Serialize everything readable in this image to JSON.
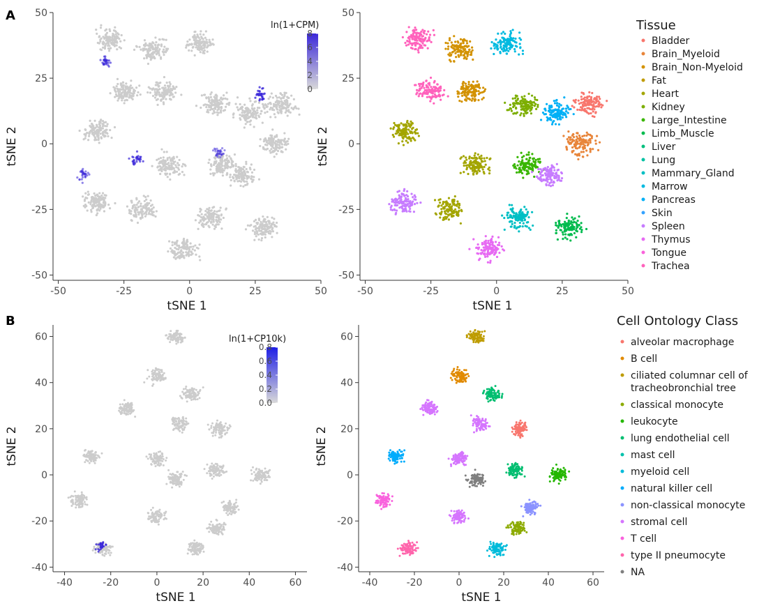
{
  "panels": {
    "A": "A",
    "B": "B"
  },
  "colors": {
    "grey": "#cccccc",
    "high": "#3b28d9"
  },
  "chart_data": [
    {
      "type": "scatter",
      "id": "A_left",
      "xlabel": "tSNE 1",
      "ylabel": "tSNE 2",
      "xlim": [
        -52,
        50
      ],
      "ylim": [
        -52,
        50
      ],
      "xticks": [
        -50,
        -25,
        0,
        25,
        50
      ],
      "yticks": [
        -50,
        -25,
        0,
        25,
        50
      ],
      "colorbar": {
        "title": "ln(1+CPM)",
        "min": 0,
        "max": 8,
        "ticks": [
          0,
          2,
          4,
          6,
          8
        ]
      },
      "expression_regions": [
        {
          "x": 27,
          "y": 19,
          "value": 6
        },
        {
          "x": -32,
          "y": 31,
          "value": 4
        },
        {
          "x": -20,
          "y": -6,
          "value": 5
        },
        {
          "x": -40,
          "y": -12,
          "value": 3
        },
        {
          "x": 11,
          "y": -3,
          "value": 2
        }
      ],
      "grid": false
    },
    {
      "type": "scatter",
      "id": "A_right",
      "xlabel": "tSNE 1",
      "ylabel": "tSNE 2",
      "xlim": [
        -52,
        50
      ],
      "ylim": [
        -52,
        50
      ],
      "xticks": [
        -50,
        -25,
        0,
        25,
        50
      ],
      "yticks": [
        -50,
        -25,
        0,
        25,
        50
      ],
      "legend": {
        "title": "Tissue",
        "position": "right",
        "items": [
          {
            "name": "Bladder",
            "color": "#f8766d"
          },
          {
            "name": "Brain_Myeloid",
            "color": "#e8853a"
          },
          {
            "name": "Brain_Non-Myeloid",
            "color": "#d39200"
          },
          {
            "name": "Fat",
            "color": "#c09b00"
          },
          {
            "name": "Heart",
            "color": "#a3a500"
          },
          {
            "name": "Kidney",
            "color": "#7cae00"
          },
          {
            "name": "Large_Intestine",
            "color": "#39b600"
          },
          {
            "name": "Limb_Muscle",
            "color": "#00bb4e"
          },
          {
            "name": "Liver",
            "color": "#00bf7d"
          },
          {
            "name": "Lung",
            "color": "#00c1a3"
          },
          {
            "name": "Mammary_Gland",
            "color": "#00bfc4"
          },
          {
            "name": "Marrow",
            "color": "#00bae0"
          },
          {
            "name": "Pancreas",
            "color": "#00b0f6"
          },
          {
            "name": "Skin",
            "color": "#35a2ff"
          },
          {
            "name": "Spleen",
            "color": "#c77cff"
          },
          {
            "name": "Thymus",
            "color": "#e76bf3"
          },
          {
            "name": "Tongue",
            "color": "#fa62db"
          },
          {
            "name": "Trachea",
            "color": "#ff62bc"
          }
        ]
      },
      "clusters": [
        {
          "x": 32,
          "y": 0,
          "color": "#e8853a"
        },
        {
          "x": 35,
          "y": 15,
          "color": "#f8766d"
        },
        {
          "x": 23,
          "y": 12,
          "color": "#00b0f6"
        },
        {
          "x": 10,
          "y": 15,
          "color": "#7cae00"
        },
        {
          "x": -10,
          "y": 20,
          "color": "#d39200"
        },
        {
          "x": -25,
          "y": 20,
          "color": "#ff62bc"
        },
        {
          "x": -35,
          "y": 5,
          "color": "#a3a500"
        },
        {
          "x": -8,
          "y": -8,
          "color": "#a3a500"
        },
        {
          "x": 12,
          "y": -8,
          "color": "#39b600"
        },
        {
          "x": -18,
          "y": -25,
          "color": "#a3a500"
        },
        {
          "x": 8,
          "y": -28,
          "color": "#00bfc4"
        },
        {
          "x": -35,
          "y": -22,
          "color": "#c77cff"
        },
        {
          "x": 20,
          "y": -12,
          "color": "#c77cff"
        },
        {
          "x": -30,
          "y": 40,
          "color": "#ff62bc"
        },
        {
          "x": -14,
          "y": 36,
          "color": "#d39200"
        },
        {
          "x": 4,
          "y": 38,
          "color": "#00bae0"
        },
        {
          "x": -3,
          "y": -40,
          "color": "#e76bf3"
        },
        {
          "x": 28,
          "y": -32,
          "color": "#00bb4e"
        }
      ],
      "grid": false
    },
    {
      "type": "scatter",
      "id": "B_left",
      "xlabel": "tSNE 1",
      "ylabel": "tSNE 2",
      "xlim": [
        -45,
        65
      ],
      "ylim": [
        -42,
        65
      ],
      "xticks": [
        -40,
        -20,
        0,
        20,
        40,
        60
      ],
      "yticks": [
        -40,
        -20,
        0,
        20,
        40,
        60
      ],
      "colorbar": {
        "title": "ln(1+CP10k)",
        "min": 0,
        "max": 0.8,
        "ticks": [
          "0.0",
          "0.2",
          "0.4",
          "0.6",
          "0.8"
        ]
      },
      "expression_regions": [
        {
          "x": -24,
          "y": -31,
          "value": 0.6
        }
      ],
      "grid": false
    },
    {
      "type": "scatter",
      "id": "B_right",
      "xlabel": "tSNE 1",
      "ylabel": "tSNE 2",
      "xlim": [
        -45,
        65
      ],
      "ylim": [
        -42,
        65
      ],
      "xticks": [
        -40,
        -20,
        0,
        20,
        40,
        60
      ],
      "yticks": [
        -40,
        -20,
        0,
        20,
        40,
        60
      ],
      "legend": {
        "title": "Cell Ontology Class",
        "position": "right",
        "items": [
          {
            "name": "alveolar macrophage",
            "color": "#f8766d"
          },
          {
            "name": "B cell",
            "color": "#e18a00"
          },
          {
            "name": "ciliated columnar cell of tracheobronchial tree",
            "lines": [
              "ciliated columnar cell of",
              "tracheobronchial tree"
            ],
            "color": "#be9c00"
          },
          {
            "name": "classical monocyte",
            "color": "#8cab00"
          },
          {
            "name": "leukocyte",
            "color": "#24b700"
          },
          {
            "name": "lung endothelial cell",
            "color": "#00be70"
          },
          {
            "name": "mast cell",
            "color": "#00c1ab"
          },
          {
            "name": "myeloid cell",
            "color": "#00bbda"
          },
          {
            "name": "natural killer cell",
            "color": "#00acfc"
          },
          {
            "name": "non-classical monocyte",
            "color": "#8b93ff"
          },
          {
            "name": "stromal cell",
            "color": "#d575fe"
          },
          {
            "name": "T cell",
            "color": "#f962dd"
          },
          {
            "name": "type II pneumocyte",
            "color": "#ff65ac"
          },
          {
            "name": "NA",
            "color": "#7f7f7f"
          }
        ]
      },
      "clusters": [
        {
          "x": 8,
          "y": 60,
          "color": "#be9c00"
        },
        {
          "x": 0,
          "y": 43,
          "color": "#e18a00"
        },
        {
          "x": 15,
          "y": 35,
          "color": "#00be70"
        },
        {
          "x": -13,
          "y": 29,
          "color": "#d575fe"
        },
        {
          "x": 10,
          "y": 22,
          "color": "#d575fe"
        },
        {
          "x": 27,
          "y": 20,
          "color": "#f8766d"
        },
        {
          "x": -28,
          "y": 8,
          "color": "#00acfc"
        },
        {
          "x": 0,
          "y": 7,
          "color": "#d575fe"
        },
        {
          "x": 25,
          "y": 2,
          "color": "#00be70"
        },
        {
          "x": 45,
          "y": 0,
          "color": "#24b700"
        },
        {
          "x": -34,
          "y": -11,
          "color": "#f962dd"
        },
        {
          "x": 0,
          "y": -18,
          "color": "#d575fe"
        },
        {
          "x": 32,
          "y": -14,
          "color": "#8b93ff"
        },
        {
          "x": 26,
          "y": -23,
          "color": "#8cab00"
        },
        {
          "x": -23,
          "y": -32,
          "color": "#ff65ac"
        },
        {
          "x": 17,
          "y": -32,
          "color": "#00bbda"
        },
        {
          "x": 8,
          "y": -2,
          "color": "#7f7f7f"
        }
      ],
      "grid": false
    }
  ]
}
